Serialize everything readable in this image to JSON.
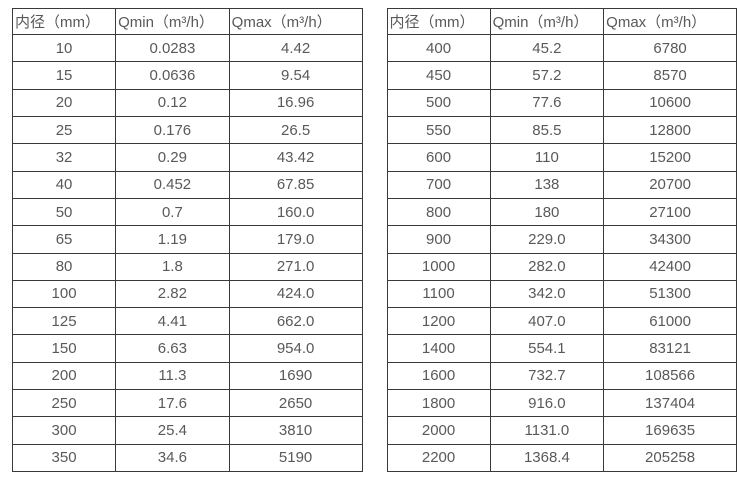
{
  "colors": {
    "text_color": "#595959",
    "border_color": "#3a3a3a",
    "bg_color": "#ffffff"
  },
  "tables": [
    {
      "name": "flow-spec-table-small-diameters",
      "headers": [
        "内径（mm）",
        "Qmin（m³/h）",
        "Qmax（m³/h）"
      ],
      "rows": [
        [
          "10",
          "0.0283",
          "4.42"
        ],
        [
          "15",
          "0.0636",
          "9.54"
        ],
        [
          "20",
          "0.12",
          "16.96"
        ],
        [
          "25",
          "0.176",
          "26.5"
        ],
        [
          "32",
          "0.29",
          "43.42"
        ],
        [
          "40",
          "0.452",
          "67.85"
        ],
        [
          "50",
          "0.7",
          "160.0"
        ],
        [
          "65",
          "1.19",
          "179.0"
        ],
        [
          "80",
          "1.8",
          "271.0"
        ],
        [
          "100",
          "2.82",
          "424.0"
        ],
        [
          "125",
          "4.41",
          "662.0"
        ],
        [
          "150",
          "6.63",
          "954.0"
        ],
        [
          "200",
          "11.3",
          "1690"
        ],
        [
          "250",
          "17.6",
          "2650"
        ],
        [
          "300",
          "25.4",
          "3810"
        ],
        [
          "350",
          "34.6",
          "5190"
        ]
      ]
    },
    {
      "name": "flow-spec-table-large-diameters",
      "headers": [
        "内径（mm）",
        "Qmin（m³/h）",
        "Qmax（m³/h）"
      ],
      "rows": [
        [
          "400",
          "45.2",
          "6780"
        ],
        [
          "450",
          "57.2",
          "8570"
        ],
        [
          "500",
          "77.6",
          "10600"
        ],
        [
          "550",
          "85.5",
          "12800"
        ],
        [
          "600",
          "110",
          "15200"
        ],
        [
          "700",
          "138",
          "20700"
        ],
        [
          "800",
          "180",
          "27100"
        ],
        [
          "900",
          "229.0",
          "34300"
        ],
        [
          "1000",
          "282.0",
          "42400"
        ],
        [
          "1100",
          "342.0",
          "51300"
        ],
        [
          "1200",
          "407.0",
          "61000"
        ],
        [
          "1400",
          "554.1",
          "83121"
        ],
        [
          "1600",
          "732.7",
          "108566"
        ],
        [
          "1800",
          "916.0",
          "137404"
        ],
        [
          "2000",
          "1131.0",
          "169635"
        ],
        [
          "2200",
          "1368.4",
          "205258"
        ]
      ]
    }
  ]
}
